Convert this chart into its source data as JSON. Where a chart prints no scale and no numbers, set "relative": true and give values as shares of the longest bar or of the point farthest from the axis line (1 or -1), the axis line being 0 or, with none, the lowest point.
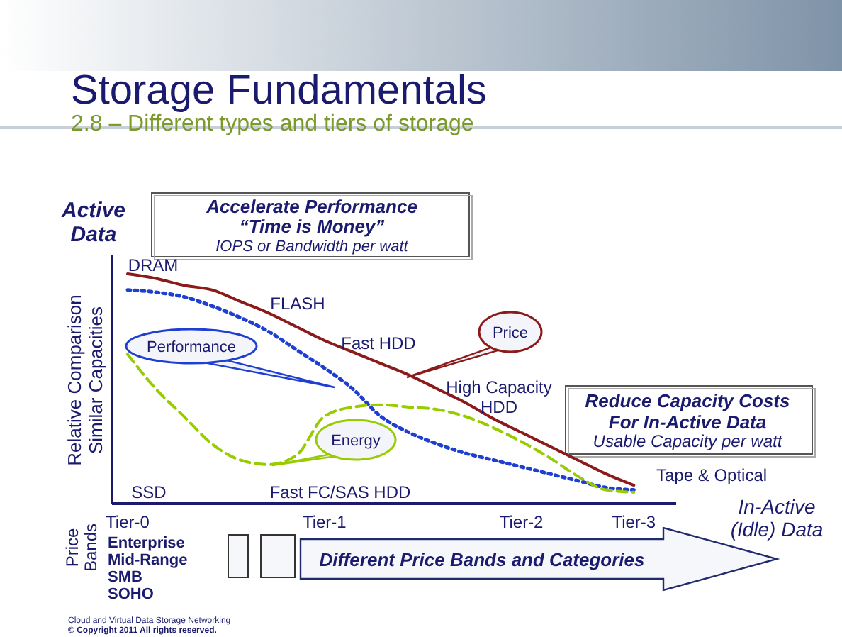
{
  "chart_data": {
    "type": "line",
    "relative": true,
    "title": "Storage Fundamentals",
    "subtitle": "2.8 – Different types and tiers of storage",
    "ylabel": "Relative Comparison\nSimilar Capacities",
    "categories": [
      "Tier-0",
      null,
      null,
      null,
      null,
      null,
      null,
      "Tier-1",
      null,
      null,
      null,
      null,
      null,
      null,
      "Tier-2",
      null,
      null,
      null,
      "Tier-3",
      null
    ],
    "tick_labels": "x",
    "legend": false,
    "grid": false,
    "series": [
      {
        "name": "Price",
        "color": "#8b1a1a",
        "line_style": "solid",
        "values": [
          1.0,
          0.98,
          0.95,
          0.93,
          0.88,
          0.83,
          0.77,
          0.71,
          0.66,
          0.61,
          0.56,
          0.5,
          0.44,
          0.37,
          0.31,
          0.25,
          0.19,
          0.13,
          0.08,
          null
        ]
      },
      {
        "name": "Performance",
        "color": "#1f3fd0",
        "line_style": "dotted",
        "values": [
          0.93,
          0.92,
          0.9,
          0.86,
          0.81,
          0.75,
          0.67,
          0.59,
          0.5,
          0.38,
          0.31,
          0.26,
          0.22,
          0.19,
          0.16,
          0.13,
          0.1,
          0.07,
          0.06,
          null
        ]
      },
      {
        "name": "Energy",
        "color": "#99cc00",
        "line_style": "dashed",
        "values": [
          0.65,
          0.5,
          0.38,
          0.26,
          0.19,
          0.17,
          0.21,
          0.38,
          0.42,
          0.43,
          0.42,
          0.41,
          0.38,
          0.33,
          0.27,
          0.2,
          0.12,
          0.06,
          0.05,
          null
        ]
      }
    ],
    "annotations": [
      "Active\nData",
      "Accelerate Performance",
      "“Time is Money”",
      "IOPS or Bandwidth per watt",
      "DRAM",
      "FLASH",
      "Fast HDD",
      "High Capacity\nHDD",
      "Tape & Optical",
      "SSD",
      "Fast FC/SAS HDD",
      "Reduce Capacity Costs\nFor In-Active Data",
      "Usable Capacity per watt",
      "In-Active\n(Idle) Data",
      "Price\nBands",
      "Enterprise\nMid-Range\nSMB\nSOHO",
      "Different Price Bands and Categories",
      "Cloud and Virtual Data Storage Networking",
      "© Copyright 2011 All rights reserved."
    ]
  }
}
